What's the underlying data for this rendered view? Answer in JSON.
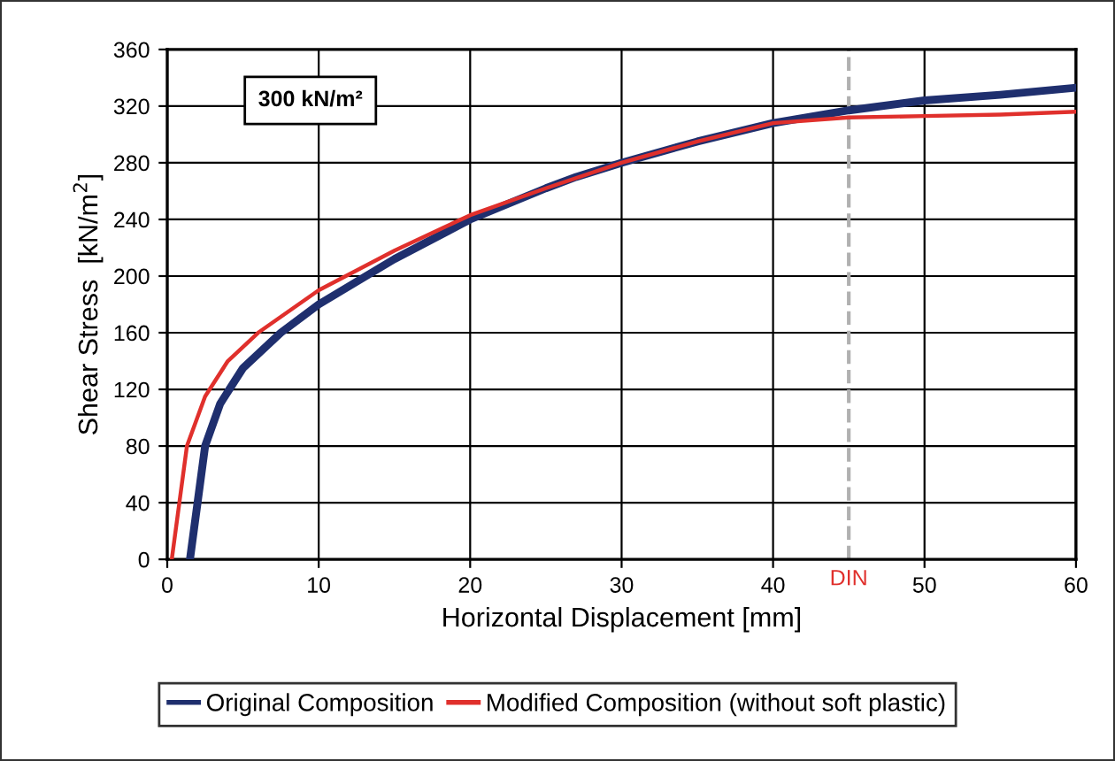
{
  "chart_data": {
    "type": "line",
    "xlabel": "Horizontal Displacement [mm]",
    "ylabel": "Shear Stress  [kN/m$^{2}$]",
    "annotations": [
      "300 kN/m²"
    ],
    "series": [
      {
        "name": "Original Composition",
        "color": "#1f2f6e",
        "x": [
          1.5,
          2,
          2.5,
          3.5,
          5,
          7.5,
          10,
          15,
          20,
          25,
          27,
          30,
          35,
          40,
          45,
          50,
          55,
          60
        ],
        "values": [
          0,
          40,
          80,
          110,
          135,
          160,
          180,
          212,
          240,
          262,
          270,
          280,
          295,
          308,
          317,
          324,
          328,
          333
        ]
      },
      {
        "name": "Modified Composition (without soft plastic)",
        "color": "#e0302c",
        "x": [
          0.3,
          0.8,
          1.3,
          2.5,
          4,
          6,
          10,
          15,
          20,
          25,
          30,
          35,
          40,
          45,
          50,
          55,
          60
        ],
        "values": [
          0,
          40,
          80,
          115,
          140,
          160,
          190,
          218,
          243,
          262,
          280,
          295,
          308,
          312,
          313,
          314,
          316
        ]
      }
    ],
    "ref_lines": [
      {
        "axis": "x",
        "value": 45,
        "label": "DIN",
        "color": "#b0b0b0",
        "line_style": "dashed"
      }
    ],
    "xlim": [
      0,
      60
    ],
    "xticks": [
      0,
      10,
      20,
      30,
      40,
      50,
      60
    ],
    "ylim": [
      0,
      360
    ],
    "yticks": [
      0,
      40,
      80,
      120,
      160,
      200,
      240,
      280,
      320,
      360
    ],
    "grid": true,
    "legend": "bottom",
    "marker": "none",
    "line_style": "solid"
  }
}
